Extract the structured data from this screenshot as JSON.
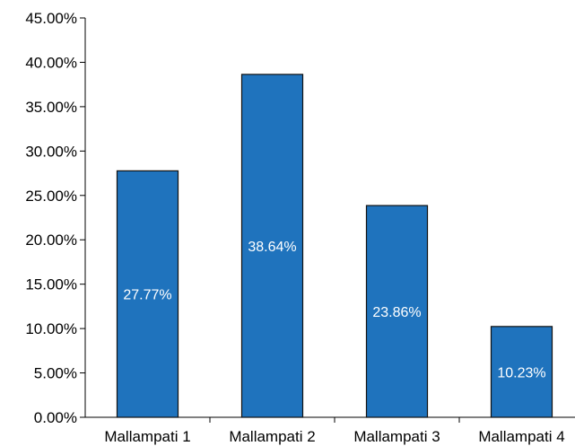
{
  "chart_data": {
    "type": "bar",
    "categories": [
      "Mallampati 1",
      "Mallampati 2",
      "Mallampati 3",
      "Mallampati 4"
    ],
    "values": [
      27.77,
      38.64,
      23.86,
      10.23
    ],
    "data_labels": [
      "27.77%",
      "38.64%",
      "23.86%",
      "10.23%"
    ],
    "yticks": [
      "0.00%",
      "5.00%",
      "10.00%",
      "15.00%",
      "20.00%",
      "25.00%",
      "30.00%",
      "35.00%",
      "40.00%",
      "45.00%"
    ],
    "ylim": [
      0,
      45
    ],
    "grid": false,
    "legend": "none",
    "bar_color": "#1f73bd",
    "bar_edge_color": "#111111",
    "data_label_color": "#ffffff"
  }
}
